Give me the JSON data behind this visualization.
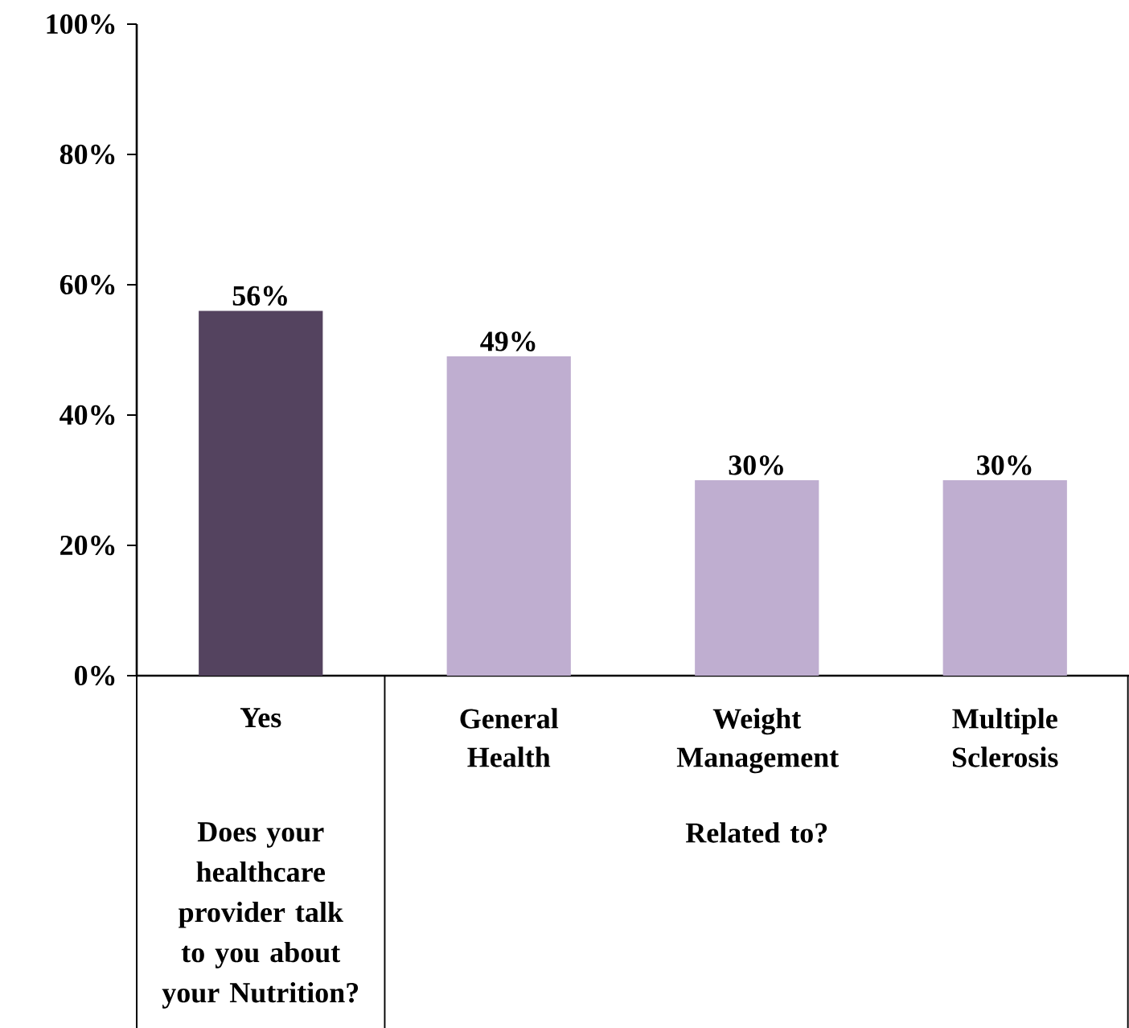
{
  "chart_data": {
    "type": "bar",
    "categories": [
      "Yes",
      "General Health",
      "Weight Management",
      "Multiple Sclerosis"
    ],
    "values": [
      56,
      49,
      30,
      30
    ],
    "colors": [
      "#54435f",
      "#bfaed0",
      "#bfaed0",
      "#bfaed0"
    ],
    "value_labels": [
      "56%",
      "49%",
      "30%",
      "30%"
    ],
    "ylim": [
      0,
      100
    ],
    "yticks": [
      {
        "value": 0,
        "label": "0%"
      },
      {
        "value": 20,
        "label": "20%"
      },
      {
        "value": 40,
        "label": "40%"
      },
      {
        "value": 60,
        "label": "60%"
      },
      {
        "value": 80,
        "label": "80%"
      },
      {
        "value": 100,
        "label": "100%"
      }
    ],
    "annotations": [
      "Does your healthcare provider talk to you about your Nutrition?",
      "Related to?"
    ]
  }
}
